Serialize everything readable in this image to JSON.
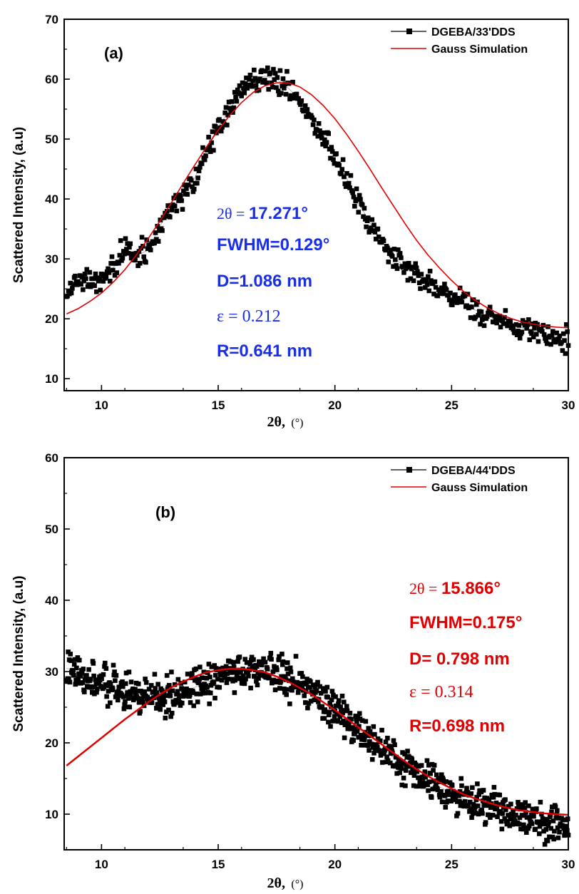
{
  "chart_data": [
    {
      "type": "scatter",
      "panel_label": "(a)",
      "xlabel_symbol": "2θ,",
      "xlabel_unit": "(°)",
      "ylabel": "Scattered Intensity, (a.u)",
      "xlim": [
        8.4,
        30
      ],
      "ylim": [
        8,
        70
      ],
      "xticks": [
        10,
        15,
        20,
        25,
        30
      ],
      "yticks": [
        10,
        20,
        30,
        40,
        50,
        60,
        70
      ],
      "legend_position": "top-right",
      "series": [
        {
          "name": "DGEBA/33'DDS",
          "style": "markers",
          "color": "#000000",
          "x": [
            8.5,
            9.0,
            9.5,
            10.0,
            10.5,
            11.0,
            11.5,
            12.0,
            12.5,
            13.0,
            13.5,
            14.0,
            14.5,
            15.0,
            15.5,
            16.0,
            16.5,
            17.0,
            17.5,
            18.0,
            18.5,
            19.0,
            19.5,
            20.0,
            20.5,
            21.0,
            21.5,
            22.0,
            22.5,
            23.0,
            23.5,
            24.0,
            24.5,
            25.0,
            25.5,
            26.0,
            26.5,
            27.0,
            27.5,
            28.0,
            28.5,
            29.0,
            29.5,
            30.0
          ],
          "y": [
            24.5,
            26.5,
            26.8,
            26.0,
            28.5,
            31.5,
            30.5,
            31.5,
            35.5,
            38.5,
            40.5,
            43.5,
            48.5,
            52.0,
            55.0,
            58.0,
            60.0,
            60.5,
            60.0,
            58.5,
            56.5,
            53.5,
            50.5,
            46.5,
            43.5,
            39.5,
            36.0,
            33.0,
            30.5,
            28.5,
            27.5,
            26.0,
            24.5,
            23.5,
            22.5,
            21.5,
            20.5,
            19.8,
            19.0,
            18.5,
            18.0,
            17.5,
            17.0,
            16.5
          ]
        },
        {
          "name": "Gauss Simulation",
          "style": "line",
          "color": "#e00000",
          "x": [
            8.5,
            9.0,
            9.5,
            10.0,
            10.5,
            11.0,
            11.5,
            12.0,
            12.5,
            13.0,
            13.5,
            14.0,
            14.5,
            15.0,
            15.5,
            16.0,
            16.5,
            17.0,
            17.5,
            18.0,
            18.5,
            19.0,
            19.5,
            20.0,
            20.5,
            21.0,
            21.5,
            22.0,
            22.5,
            23.0,
            23.5,
            24.0,
            24.5,
            25.0,
            25.5,
            26.0,
            26.5,
            27.0,
            27.5,
            28.0,
            28.5,
            29.0,
            29.5,
            30.0
          ],
          "y": [
            20.8,
            21.7,
            22.9,
            24.3,
            26.1,
            28.2,
            30.7,
            33.4,
            36.3,
            39.4,
            42.6,
            45.7,
            48.7,
            51.5,
            54.0,
            56.1,
            57.8,
            58.9,
            59.4,
            59.4,
            58.7,
            57.4,
            55.6,
            53.4,
            50.8,
            48.0,
            45.0,
            41.9,
            38.9,
            35.9,
            33.1,
            30.6,
            28.4,
            26.4,
            24.6,
            23.1,
            21.9,
            20.9,
            20.1,
            19.5,
            19.1,
            18.8,
            18.6,
            18.5
          ]
        }
      ],
      "annotations": [
        {
          "prefix": "2θ = ",
          "value": "17.271°"
        },
        {
          "value": "FWHM=0.129°"
        },
        {
          "value": "D=1.086 nm"
        },
        {
          "prefix": "ε = 0.212"
        },
        {
          "value": "R=0.641 nm"
        }
      ],
      "annotation_color": "#1a2ee6"
    },
    {
      "type": "scatter",
      "panel_label": "(b)",
      "xlabel_symbol": "2θ,",
      "xlabel_unit": "(°)",
      "ylabel": "Scattered Intensity, (a.u)",
      "xlim": [
        8.4,
        30
      ],
      "ylim": [
        5,
        60
      ],
      "xticks": [
        10,
        15,
        20,
        25,
        30
      ],
      "yticks": [
        10,
        20,
        30,
        40,
        50,
        60
      ],
      "legend_position": "top-right",
      "series": [
        {
          "name": "DGEBA/44'DDS",
          "style": "markers",
          "color": "#000000",
          "x": [
            8.5,
            9.0,
            9.5,
            10.0,
            10.5,
            11.0,
            11.5,
            12.0,
            12.5,
            13.0,
            13.5,
            14.0,
            14.5,
            15.0,
            15.5,
            16.0,
            16.5,
            17.0,
            17.5,
            18.0,
            18.5,
            19.0,
            19.5,
            20.0,
            20.5,
            21.0,
            21.5,
            22.0,
            22.5,
            23.0,
            23.5,
            24.0,
            24.5,
            25.0,
            25.5,
            26.0,
            26.5,
            27.0,
            27.5,
            28.0,
            28.5,
            29.0,
            29.5,
            30.0
          ],
          "y": [
            30.5,
            29.8,
            29.0,
            28.5,
            28.0,
            27.5,
            27.0,
            26.8,
            26.5,
            26.8,
            27.2,
            27.8,
            28.5,
            29.2,
            29.8,
            30.2,
            30.5,
            30.3,
            29.8,
            29.0,
            28.0,
            27.0,
            25.8,
            24.5,
            23.2,
            22.0,
            20.5,
            19.2,
            18.0,
            16.8,
            15.6,
            14.6,
            13.8,
            13.0,
            12.2,
            11.6,
            11.0,
            10.5,
            10.0,
            9.6,
            9.2,
            9.0,
            8.7,
            8.4
          ]
        },
        {
          "name": "Gauss Simulation",
          "style": "line",
          "color": "#e00000",
          "x": [
            8.5,
            9.0,
            9.5,
            10.0,
            10.5,
            11.0,
            11.5,
            12.0,
            12.5,
            13.0,
            13.5,
            14.0,
            14.5,
            15.0,
            15.5,
            16.0,
            16.5,
            17.0,
            17.5,
            18.0,
            18.5,
            19.0,
            19.5,
            20.0,
            20.5,
            21.0,
            21.5,
            22.0,
            22.5,
            23.0,
            23.5,
            24.0,
            24.5,
            25.0,
            25.5,
            26.0,
            26.5,
            27.0,
            27.5,
            28.0,
            28.5,
            29.0,
            29.5,
            30.0
          ],
          "y": [
            16.8,
            18.1,
            19.4,
            20.7,
            22.0,
            23.3,
            24.5,
            25.7,
            26.8,
            27.8,
            28.6,
            29.3,
            29.9,
            30.2,
            30.4,
            30.4,
            30.2,
            29.9,
            29.3,
            28.6,
            27.7,
            26.8,
            25.7,
            24.6,
            23.4,
            22.2,
            21.0,
            19.8,
            18.6,
            17.4,
            16.3,
            15.3,
            14.4,
            13.6,
            12.8,
            12.2,
            11.7,
            11.2,
            10.8,
            10.5,
            10.3,
            10.1,
            10.0,
            9.9
          ]
        }
      ],
      "annotations": [
        {
          "prefix": "2θ = ",
          "value": "15.866°"
        },
        {
          "value": "FWHM=0.175°"
        },
        {
          "value": "D= 0.798 nm"
        },
        {
          "prefix": "ε = 0.314"
        },
        {
          "value": "R=0.698 nm"
        }
      ],
      "annotation_color": "#e00000"
    }
  ]
}
